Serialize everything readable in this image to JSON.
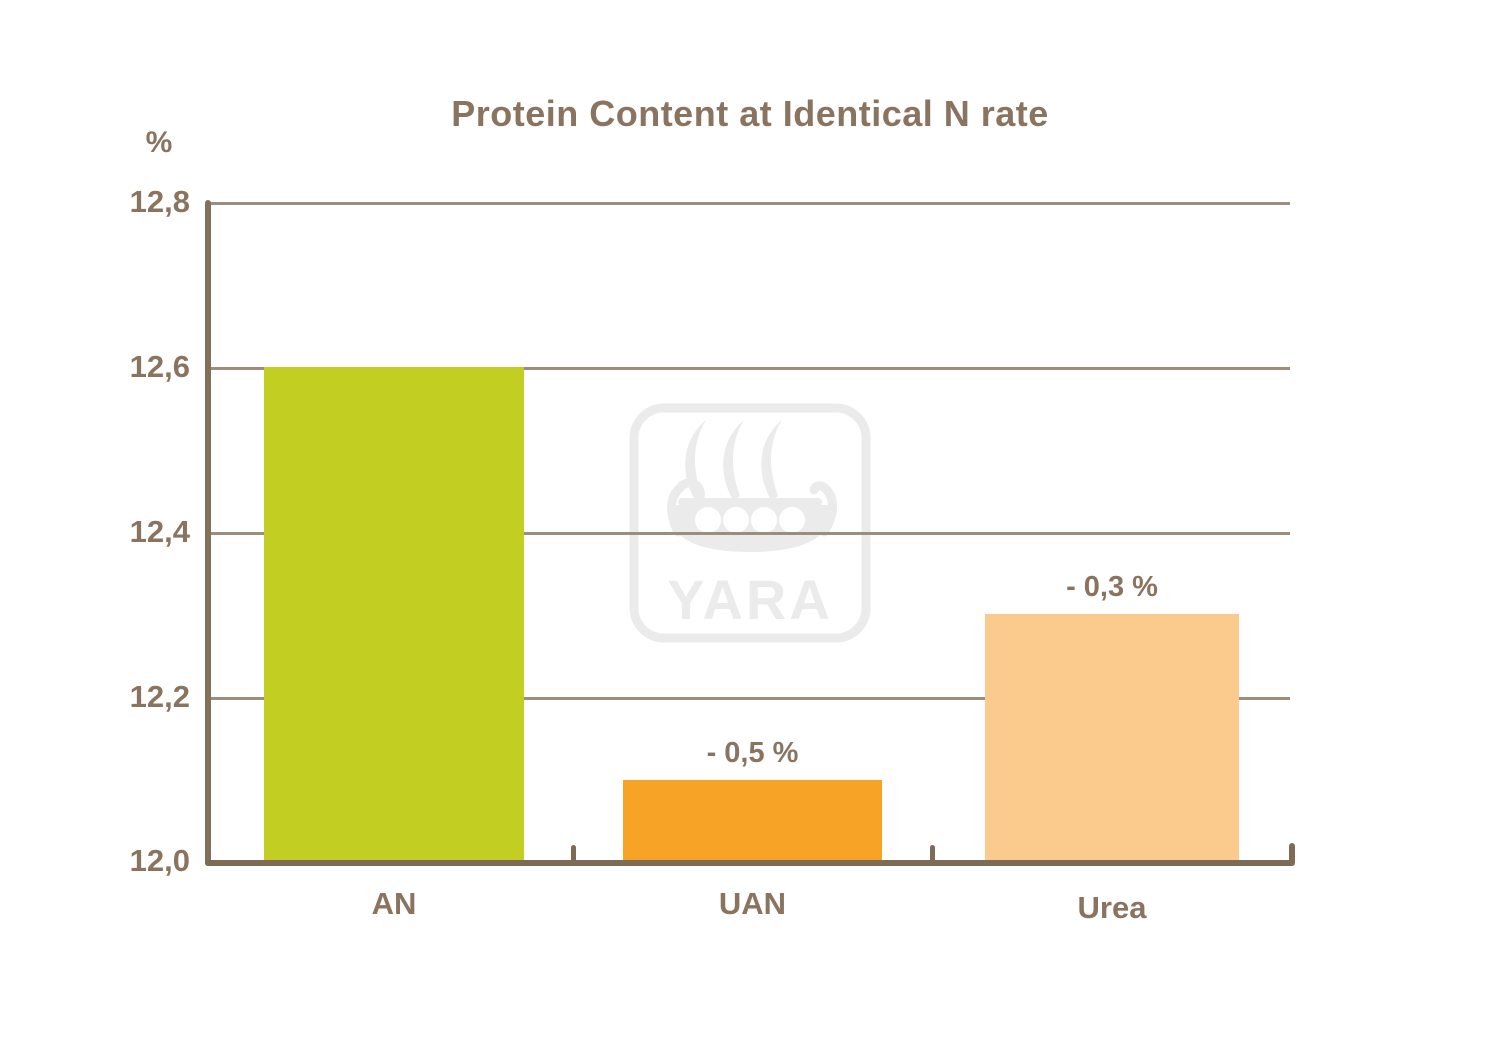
{
  "chart_data": {
    "type": "bar",
    "title": "Protein Content at Identical N rate",
    "ylabel": "%",
    "categories": [
      "AN",
      "UAN",
      "Urea"
    ],
    "values": [
      12.6,
      12.1,
      12.3
    ],
    "bar_labels": [
      "",
      "- 0,5 %",
      "- 0,3 %"
    ],
    "bar_colors": [
      "#c3ce23",
      "#f6a326",
      "#fbcb8e"
    ],
    "ylim": [
      12.0,
      12.8
    ],
    "ytick_labels": [
      "12,8",
      "12,6",
      "12,4",
      "12,2",
      "12,0"
    ],
    "ytick_step": 0.2,
    "grid": true,
    "legend": "none",
    "decimal_separator": ","
  },
  "watermark": {
    "text": "YARA",
    "icon": "yara-viking-ship-logo"
  },
  "colors": {
    "text": "#8a7460",
    "axis": "#7d6c53",
    "gridline": "#9c8e7e",
    "bar_an": "#c3ce23",
    "bar_uan": "#f6a326",
    "bar_urea": "#fbcb8e",
    "watermark": "#ebebeb",
    "background": "#ffffff"
  }
}
